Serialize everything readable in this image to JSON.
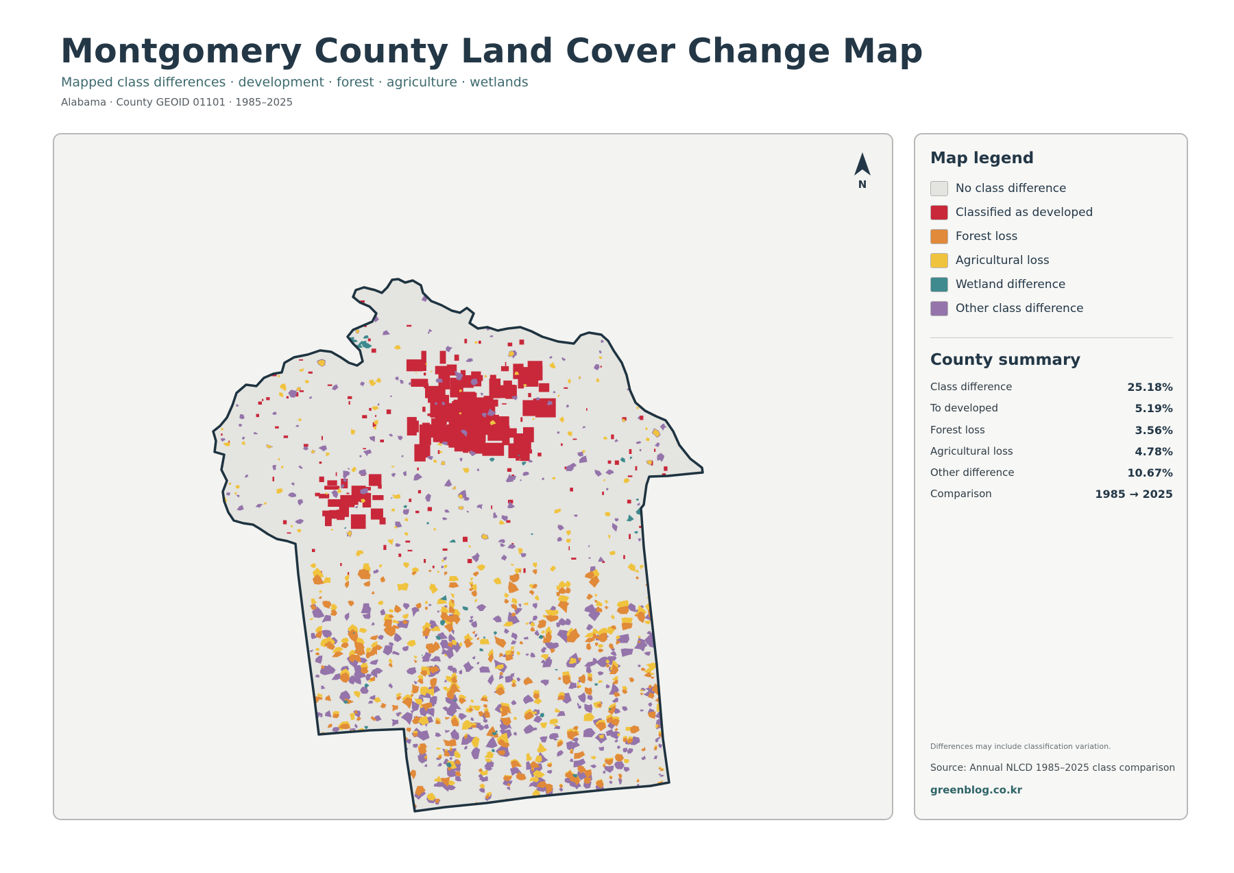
{
  "header": {
    "title": "Montgomery County Land Cover Change Map",
    "subtitle": "Mapped class differences · development · forest · agriculture · wetlands",
    "meta": "Alabama · County GEOID 01101 · 1985–2025"
  },
  "map": {
    "north_label": "N",
    "colors": {
      "panel_bg": "#f3f3f1",
      "county_fill": "#e4e4e0",
      "boundary": "#1e3340"
    }
  },
  "legend": {
    "title": "Map legend",
    "items": [
      {
        "label": "No class difference",
        "color": "#e4e4e0"
      },
      {
        "label": "Classified as developed",
        "color": "#c8283a"
      },
      {
        "label": "Forest loss",
        "color": "#e08a3a"
      },
      {
        "label": "Agricultural loss",
        "color": "#f0c33f"
      },
      {
        "label": "Wetland difference",
        "color": "#3e8a8e"
      },
      {
        "label": "Other class difference",
        "color": "#9474aa"
      }
    ]
  },
  "summary": {
    "title": "County summary",
    "rows": [
      {
        "label": "Class difference",
        "value": "25.18%"
      },
      {
        "label": "To developed",
        "value": "5.19%"
      },
      {
        "label": "Forest loss",
        "value": "3.56%"
      },
      {
        "label": "Agricultural loss",
        "value": "4.78%"
      },
      {
        "label": "Other difference",
        "value": "10.67%"
      },
      {
        "label": "Comparison",
        "value": "1985 → 2025"
      }
    ]
  },
  "footer": {
    "note": "Differences may include classification variation.",
    "source": "Source: Annual NLCD 1985–2025 class comparison",
    "site": "greenblog.co.kr"
  }
}
